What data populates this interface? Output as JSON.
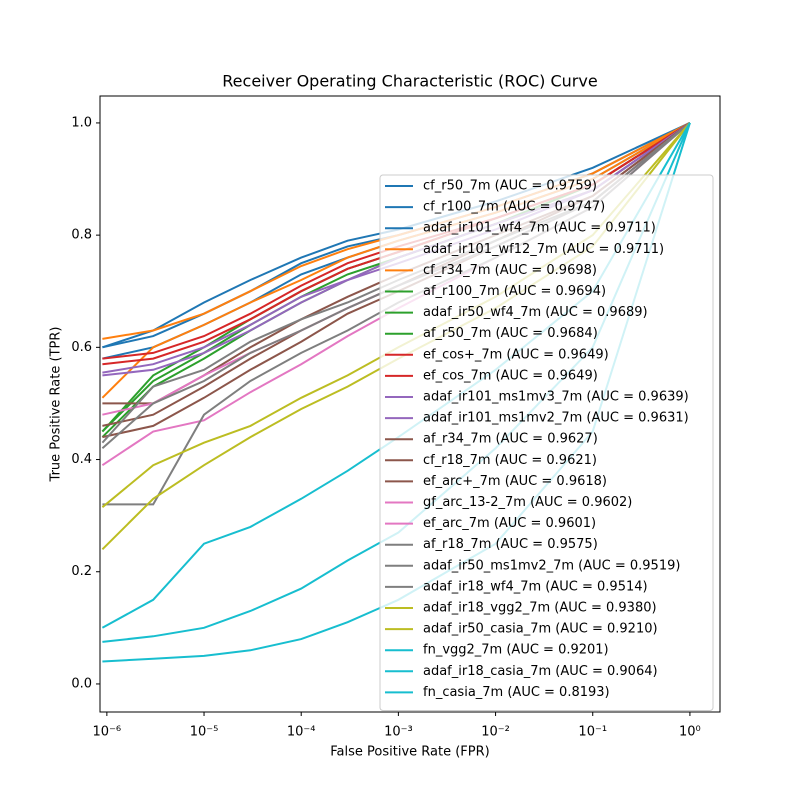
{
  "chart_data": {
    "type": "line",
    "title": "Receiver Operating Characteristic (ROC) Curve",
    "x_label": "False Positive Rate (FPR)",
    "y_label": "True Positive Rate (TPR)",
    "log_x": true,
    "xlim": [
      8.5e-07,
      2.04
    ],
    "ylim": [
      -0.05,
      1.048
    ],
    "xticks": [
      {
        "value": 1e-06,
        "label": "10⁻⁶"
      },
      {
        "value": 1e-05,
        "label": "10⁻⁵"
      },
      {
        "value": 0.0001,
        "label": "10⁻⁴"
      },
      {
        "value": 0.001,
        "label": "10⁻³"
      },
      {
        "value": 0.01,
        "label": "10⁻²"
      },
      {
        "value": 0.1,
        "label": "10⁻¹"
      },
      {
        "value": 1,
        "label": "10⁰"
      }
    ],
    "yticks": [
      {
        "value": 0,
        "label": "0.0"
      },
      0.2,
      0.4,
      0.6,
      0.8,
      {
        "value": 1,
        "label": "1.0"
      }
    ],
    "legend": "right",
    "x": [
      9e-07,
      3e-06,
      1e-05,
      3e-05,
      0.0001,
      0.0003,
      0.001,
      0.01,
      0.1,
      1
    ],
    "series": [
      {
        "name": "cf_r50_7m (AUC = 0.9759)",
        "color": "#1f77b4",
        "values": [
          0.6,
          0.63,
          0.68,
          0.72,
          0.76,
          0.79,
          0.81,
          0.86,
          0.92,
          1
        ]
      },
      {
        "name": "cf_r100_7m (AUC = 0.9747)",
        "color": "#1f77b4",
        "values": [
          0.6,
          0.62,
          0.66,
          0.7,
          0.75,
          0.78,
          0.8,
          0.85,
          0.91,
          1
        ]
      },
      {
        "name": "adaf_ir101_wf4_7m (AUC = 0.9711)",
        "color": "#1f77b4",
        "values": [
          0.58,
          0.6,
          0.64,
          0.68,
          0.73,
          0.76,
          0.79,
          0.84,
          0.9,
          1
        ]
      },
      {
        "name": "adaf_ir101_wf12_7m (AUC = 0.9711)",
        "color": "#ff7f0e",
        "values": [
          0.615,
          0.63,
          0.66,
          0.7,
          0.745,
          0.775,
          0.8,
          0.85,
          0.91,
          1
        ]
      },
      {
        "name": "cf_r34_7m (AUC = 0.9698)",
        "color": "#ff7f0e",
        "values": [
          0.51,
          0.6,
          0.64,
          0.68,
          0.72,
          0.76,
          0.79,
          0.84,
          0.9,
          1
        ]
      },
      {
        "name": "af_r100_7m (AUC = 0.9694)",
        "color": "#2ca02c",
        "values": [
          0.45,
          0.55,
          0.6,
          0.65,
          0.7,
          0.74,
          0.77,
          0.83,
          0.89,
          1
        ]
      },
      {
        "name": "adaf_ir50_wf4_7m (AUC = 0.9689)",
        "color": "#2ca02c",
        "values": [
          0.45,
          0.54,
          0.59,
          0.64,
          0.69,
          0.73,
          0.76,
          0.82,
          0.89,
          1
        ]
      },
      {
        "name": "af_r50_7m (AUC = 0.9684)",
        "color": "#2ca02c",
        "values": [
          0.44,
          0.53,
          0.58,
          0.63,
          0.68,
          0.72,
          0.76,
          0.82,
          0.88,
          1
        ]
      },
      {
        "name": "ef_cos+_7m (AUC = 0.9649)",
        "color": "#d62728",
        "values": [
          0.58,
          0.59,
          0.62,
          0.66,
          0.71,
          0.75,
          0.78,
          0.83,
          0.89,
          1
        ]
      },
      {
        "name": "ef_cos_7m (AUC = 0.9649)",
        "color": "#d62728",
        "values": [
          0.57,
          0.58,
          0.61,
          0.65,
          0.7,
          0.74,
          0.77,
          0.83,
          0.89,
          1
        ]
      },
      {
        "name": "adaf_ir101_ms1mv3_7m (AUC = 0.9639)",
        "color": "#9467bd",
        "values": [
          0.555,
          0.57,
          0.6,
          0.64,
          0.69,
          0.72,
          0.76,
          0.82,
          0.88,
          1
        ]
      },
      {
        "name": "adaf_ir101_ms1mv2_7m (AUC = 0.9631)",
        "color": "#9467bd",
        "values": [
          0.55,
          0.56,
          0.59,
          0.63,
          0.68,
          0.72,
          0.75,
          0.81,
          0.88,
          1
        ]
      },
      {
        "name": "af_r34_7m (AUC = 0.9627)",
        "color": "#8c564b",
        "values": [
          0.5,
          0.5,
          0.55,
          0.6,
          0.65,
          0.69,
          0.73,
          0.8,
          0.87,
          1
        ]
      },
      {
        "name": "cf_r18_7m (AUC = 0.9621)",
        "color": "#8c564b",
        "values": [
          0.46,
          0.48,
          0.53,
          0.58,
          0.63,
          0.67,
          0.71,
          0.79,
          0.87,
          1
        ]
      },
      {
        "name": "ef_arc+_7m (AUC = 0.9618)",
        "color": "#8c564b",
        "values": [
          0.44,
          0.46,
          0.51,
          0.56,
          0.61,
          0.66,
          0.7,
          0.78,
          0.86,
          1
        ]
      },
      {
        "name": "gf_arc_13-2_7m (AUC = 0.9602)",
        "color": "#e377c2",
        "values": [
          0.48,
          0.5,
          0.55,
          0.59,
          0.63,
          0.67,
          0.71,
          0.78,
          0.86,
          1
        ]
      },
      {
        "name": "ef_arc_7m (AUC = 0.9601)",
        "color": "#e377c2",
        "values": [
          0.39,
          0.45,
          0.47,
          0.52,
          0.57,
          0.62,
          0.67,
          0.76,
          0.85,
          1
        ]
      },
      {
        "name": "af_r18_7m (AUC = 0.9575)",
        "color": "#7f7f7f",
        "values": [
          0.43,
          0.53,
          0.56,
          0.61,
          0.65,
          0.68,
          0.72,
          0.79,
          0.86,
          1
        ]
      },
      {
        "name": "adaf_ir50_ms1mv2_7m (AUC = 0.9519)",
        "color": "#7f7f7f",
        "values": [
          0.42,
          0.5,
          0.54,
          0.59,
          0.63,
          0.67,
          0.71,
          0.78,
          0.86,
          1
        ]
      },
      {
        "name": "adaf_ir18_wf4_7m (AUC = 0.9514)",
        "color": "#7f7f7f",
        "values": [
          0.32,
          0.32,
          0.48,
          0.54,
          0.59,
          0.63,
          0.68,
          0.76,
          0.85,
          1
        ]
      },
      {
        "name": "adaf_ir18_vgg2_7m (AUC = 0.9380)",
        "color": "#bcbd22",
        "values": [
          0.315,
          0.39,
          0.43,
          0.46,
          0.51,
          0.55,
          0.6,
          0.69,
          0.8,
          1
        ]
      },
      {
        "name": "adaf_ir50_casia_7m (AUC = 0.9210)",
        "color": "#bcbd22",
        "values": [
          0.24,
          0.33,
          0.39,
          0.44,
          0.49,
          0.53,
          0.58,
          0.67,
          0.78,
          1
        ]
      },
      {
        "name": "fn_vgg2_7m (AUC = 0.9201)",
        "color": "#17becf",
        "values": [
          0.1,
          0.15,
          0.25,
          0.28,
          0.33,
          0.38,
          0.44,
          0.56,
          0.7,
          1
        ]
      },
      {
        "name": "adaf_ir18_casia_7m (AUC = 0.9064)",
        "color": "#17becf",
        "values": [
          0.075,
          0.085,
          0.1,
          0.13,
          0.17,
          0.22,
          0.27,
          0.42,
          0.6,
          1
        ]
      },
      {
        "name": "fn_casia_7m (AUC = 0.8193)",
        "color": "#17becf",
        "values": [
          0.04,
          0.045,
          0.05,
          0.06,
          0.08,
          0.11,
          0.15,
          0.25,
          0.45,
          1
        ]
      }
    ]
  }
}
